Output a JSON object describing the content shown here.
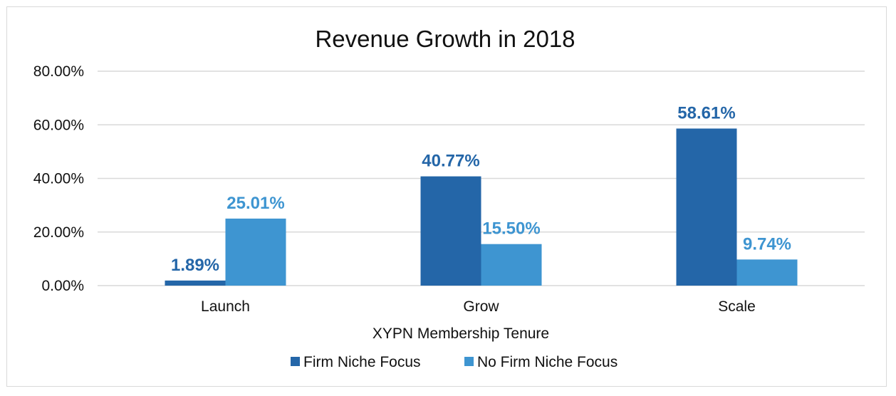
{
  "chart_data": {
    "type": "bar",
    "title": "Revenue Growth in 2018",
    "xlabel": "XYPN Membership Tenure",
    "ylabel": "",
    "categories": [
      "Launch",
      "Grow",
      "Scale"
    ],
    "series": [
      {
        "name": "Firm Niche Focus",
        "values": [
          1.89,
          40.77,
          58.61
        ],
        "labels": [
          "1.89%",
          "40.77%",
          "58.61%"
        ],
        "color": "#2466a8"
      },
      {
        "name": "No Firm Niche Focus",
        "values": [
          25.01,
          15.5,
          9.74
        ],
        "labels": [
          "25.01%",
          "15.50%",
          "9.74%"
        ],
        "color": "#3e95d1"
      }
    ],
    "ylim": [
      0,
      80
    ],
    "yticks": [
      0,
      20,
      40,
      60,
      80
    ],
    "ytick_labels": [
      "0.00%",
      "20.00%",
      "40.00%",
      "60.00%",
      "80.00%"
    ],
    "grid": true,
    "gridline_color": "#d9d9d9",
    "legend_position": "bottom"
  }
}
